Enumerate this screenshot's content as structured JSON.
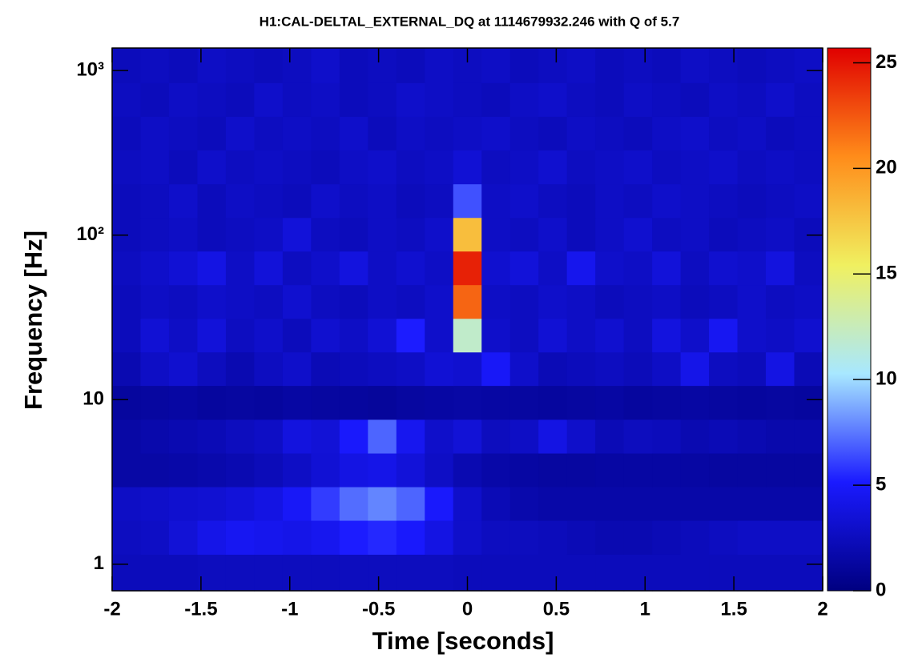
{
  "chart_data": {
    "type": "heatmap",
    "title": "H1:CAL-DELTAL_EXTERNAL_DQ at 1114679932.246 with Q of 5.7",
    "xlabel": "Time [seconds]",
    "ylabel": "Frequency [Hz]",
    "xlim": [
      -2,
      2
    ],
    "xticks": [
      -2,
      -1.5,
      -1,
      -0.5,
      0,
      0.5,
      1,
      1.5,
      2
    ],
    "ylim": [
      0.69,
      1370
    ],
    "ylog": true,
    "yticks": [
      1,
      10,
      {
        "value": 100,
        "label": "10²"
      },
      {
        "value": 1000,
        "label": "10³"
      }
    ],
    "zlim": [
      0,
      25.7
    ],
    "zticks": [
      0,
      5,
      10,
      15,
      20,
      25
    ],
    "colormap": [
      "#000080",
      "#1a1aff",
      "#a8e8ff",
      "#f0f060",
      "#ff8c1a",
      "#e00000"
    ],
    "xbins": [
      -2,
      -1.84,
      -1.68,
      -1.52,
      -1.36,
      -1.2,
      -1.04,
      -0.88,
      -0.72,
      -0.56,
      -0.4,
      -0.24,
      -0.08,
      0.08,
      0.24,
      0.4,
      0.56,
      0.72,
      0.88,
      1.04,
      1.2,
      1.36,
      1.52,
      1.68,
      1.84,
      2
    ],
    "ybins": [
      0.69,
      1.15,
      1.85,
      2.96,
      4.74,
      7.6,
      12.2,
      19.5,
      31.2,
      50,
      80,
      128,
      205,
      329,
      527,
      844,
      1370
    ],
    "values": [
      [
        2.4,
        2.4,
        2.4,
        2.5,
        2.5,
        2.5,
        2.5,
        2.5,
        2.5,
        2.5,
        2.5,
        2.5,
        2.4,
        2.4,
        2.4,
        2.4,
        2.4,
        2.4,
        2.4,
        2.4,
        2.4,
        2.4,
        2.4,
        2.4,
        2.4
      ],
      [
        2.6,
        2.8,
        3.5,
        4.2,
        4.6,
        4.4,
        4.2,
        4.5,
        5.2,
        5.5,
        5.0,
        4.0,
        3.0,
        2.6,
        2.5,
        2.4,
        2.2,
        2.0,
        2.0,
        2.2,
        2.4,
        2.6,
        2.8,
        2.8,
        2.8
      ],
      [
        2.8,
        3.0,
        3.2,
        3.3,
        3.6,
        4.0,
        4.8,
        6.0,
        7.2,
        7.8,
        7.0,
        5.0,
        3.0,
        2.2,
        1.8,
        1.6,
        1.6,
        1.6,
        1.6,
        1.6,
        1.6,
        1.6,
        1.6,
        1.6,
        1.6
      ],
      [
        1.5,
        1.5,
        1.6,
        1.8,
        2.0,
        2.3,
        2.8,
        3.4,
        4.0,
        4.2,
        3.6,
        2.8,
        2.0,
        1.6,
        1.4,
        1.3,
        1.3,
        1.4,
        1.4,
        1.4,
        1.4,
        1.3,
        1.3,
        1.3,
        1.3
      ],
      [
        1.5,
        1.8,
        2.0,
        2.2,
        2.5,
        2.8,
        3.8,
        3.5,
        5.0,
        7.0,
        4.5,
        3.0,
        3.5,
        2.5,
        2.8,
        4.0,
        3.0,
        2.2,
        2.5,
        2.4,
        2.0,
        2.2,
        2.0,
        1.8,
        1.8
      ],
      [
        1.2,
        1.3,
        1.4,
        1.2,
        1.3,
        1.2,
        1.4,
        1.3,
        1.2,
        1.1,
        1.3,
        1.4,
        1.5,
        1.4,
        1.3,
        1.2,
        1.3,
        1.4,
        1.2,
        1.3,
        1.4,
        1.3,
        1.2,
        1.3,
        1.2
      ],
      [
        2.0,
        2.8,
        3.2,
        2.5,
        2.0,
        2.6,
        3.0,
        2.2,
        2.4,
        2.6,
        2.8,
        3.4,
        3.2,
        4.8,
        3.0,
        2.2,
        2.4,
        2.6,
        2.3,
        2.8,
        4.2,
        2.6,
        2.4,
        4.0,
        2.2
      ],
      [
        2.4,
        3.4,
        2.8,
        3.6,
        2.6,
        3.0,
        2.4,
        3.2,
        2.8,
        3.4,
        5.2,
        3.0,
        12.0,
        3.0,
        2.6,
        3.4,
        2.8,
        3.2,
        2.6,
        3.8,
        3.0,
        4.6,
        3.0,
        2.8,
        3.2
      ],
      [
        2.4,
        2.8,
        2.6,
        3.0,
        2.8,
        2.6,
        3.2,
        2.6,
        2.4,
        2.8,
        2.6,
        3.0,
        22.0,
        2.8,
        2.6,
        3.0,
        2.8,
        2.4,
        2.6,
        2.8,
        2.4,
        2.6,
        3.0,
        2.6,
        2.8
      ],
      [
        2.6,
        3.0,
        3.4,
        4.0,
        2.8,
        3.6,
        2.6,
        3.0,
        3.8,
        2.8,
        3.2,
        2.8,
        24.5,
        3.2,
        3.6,
        2.8,
        4.4,
        3.0,
        2.8,
        3.6,
        2.6,
        3.2,
        3.0,
        3.8,
        2.6
      ],
      [
        2.4,
        2.6,
        2.8,
        2.4,
        2.6,
        2.8,
        3.6,
        2.6,
        2.4,
        2.8,
        2.6,
        3.0,
        18.0,
        2.8,
        2.6,
        3.0,
        2.4,
        2.8,
        3.2,
        2.6,
        2.8,
        2.4,
        2.6,
        2.8,
        2.4
      ],
      [
        2.4,
        2.6,
        3.0,
        2.4,
        2.8,
        2.6,
        2.4,
        3.0,
        2.6,
        2.8,
        2.4,
        2.6,
        6.5,
        2.8,
        3.0,
        2.6,
        2.4,
        2.8,
        2.6,
        3.0,
        2.8,
        2.6,
        2.4,
        2.6,
        2.8
      ],
      [
        2.6,
        2.8,
        2.4,
        3.0,
        2.6,
        2.8,
        2.6,
        2.4,
        2.8,
        3.0,
        2.6,
        2.8,
        3.4,
        2.6,
        2.8,
        3.2,
        2.6,
        2.8,
        3.0,
        2.6,
        2.8,
        3.0,
        2.6,
        2.8,
        2.6
      ],
      [
        2.4,
        2.8,
        2.6,
        2.4,
        3.0,
        2.6,
        2.8,
        2.6,
        3.0,
        2.4,
        2.8,
        2.6,
        2.8,
        3.0,
        2.6,
        2.4,
        2.8,
        2.6,
        2.4,
        2.8,
        3.0,
        2.6,
        2.8,
        2.4,
        2.6
      ],
      [
        2.6,
        2.4,
        2.8,
        2.6,
        2.4,
        3.0,
        2.6,
        2.8,
        2.4,
        2.6,
        3.0,
        2.8,
        2.6,
        2.4,
        2.8,
        3.0,
        2.6,
        2.4,
        2.8,
        2.6,
        2.4,
        2.8,
        2.6,
        3.0,
        2.6
      ],
      [
        2.4,
        2.6,
        2.4,
        2.8,
        2.6,
        2.4,
        2.6,
        3.0,
        2.4,
        2.6,
        2.4,
        2.8,
        2.6,
        2.8,
        2.4,
        2.6,
        2.8,
        2.4,
        2.6,
        2.4,
        2.8,
        2.6,
        2.4,
        2.6,
        2.8
      ]
    ]
  }
}
